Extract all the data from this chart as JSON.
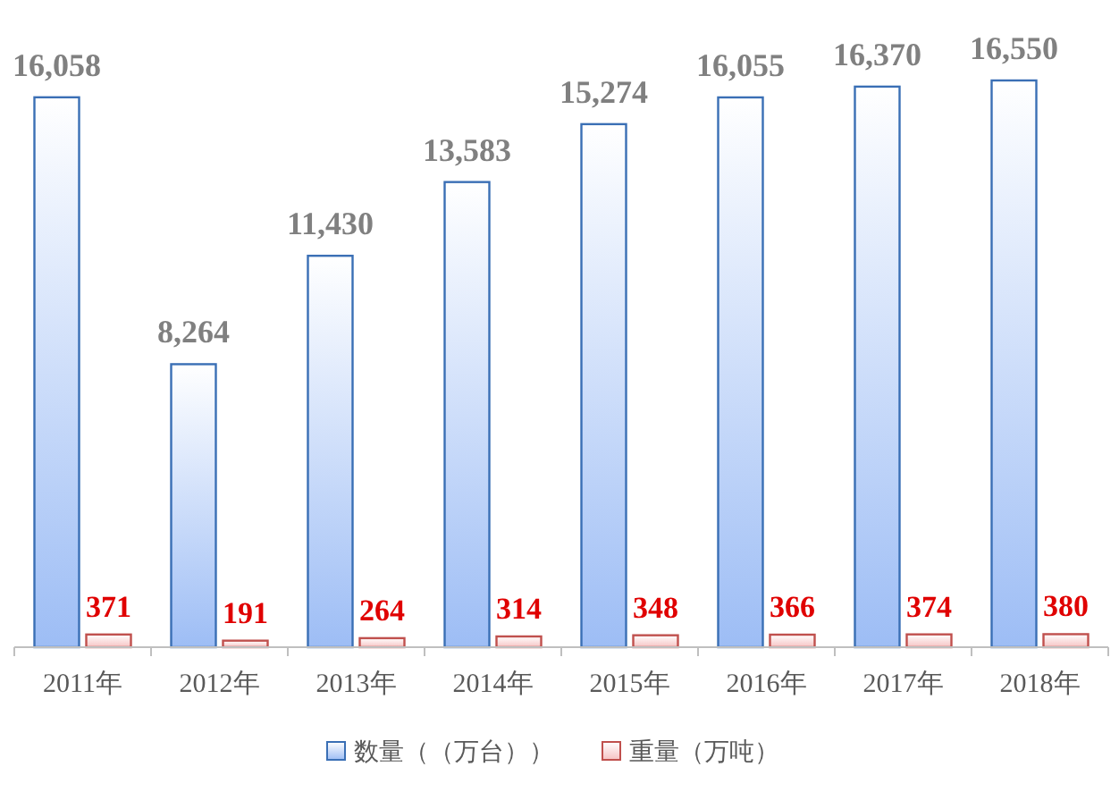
{
  "chart_data": {
    "type": "bar",
    "categories": [
      "2011年",
      "2012年",
      "2013年",
      "2014年",
      "2015年",
      "2016年",
      "2017年",
      "2018年"
    ],
    "series": [
      {
        "name": "数量（（万台））",
        "color": "#3a6fb5",
        "values": [
          16058,
          8264,
          11430,
          13583,
          15274,
          16055,
          16370,
          16550
        ],
        "value_labels": [
          "16,058",
          "8,264",
          "11,430",
          "13,583",
          "15,274",
          "16,055",
          "16,370",
          "16,550"
        ]
      },
      {
        "name": "重量（万吨）",
        "color": "#c0504d",
        "values": [
          371,
          191,
          264,
          314,
          348,
          366,
          374,
          380
        ],
        "value_labels": [
          "371",
          "191",
          "264",
          "314",
          "348",
          "366",
          "374",
          "380"
        ]
      }
    ],
    "legend": "bottom"
  }
}
